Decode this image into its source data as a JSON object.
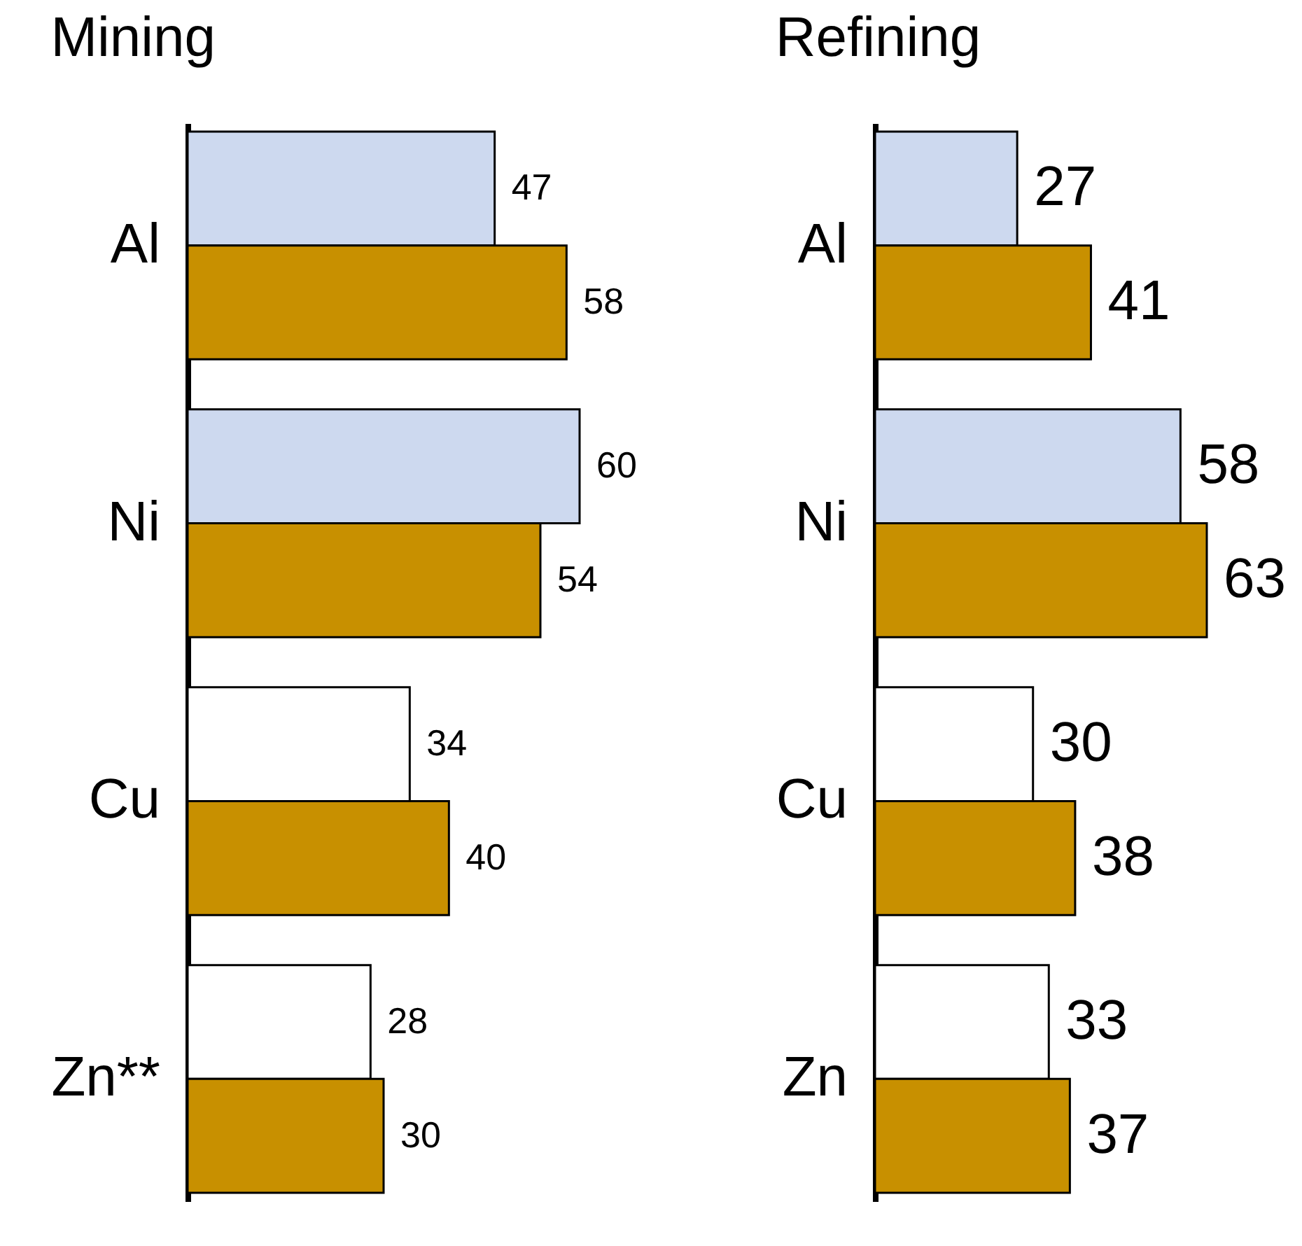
{
  "chart_data": [
    {
      "type": "bar",
      "orientation": "horizontal",
      "title": "Mining",
      "categories": [
        "Al",
        "Ni",
        "Cu",
        "Zn**"
      ],
      "data_labels": true,
      "series": [
        {
          "colors": [
            "#cdd9ef",
            "#cdd9ef",
            "#ffffff",
            "#ffffff"
          ],
          "values": [
            47,
            60,
            34,
            28
          ]
        },
        {
          "color": "#c89000",
          "values": [
            58,
            54,
            40,
            30
          ]
        }
      ]
    },
    {
      "type": "bar",
      "orientation": "horizontal",
      "title": "Refining",
      "categories": [
        "Al",
        "Ni",
        "Cu",
        "Zn"
      ],
      "data_labels": true,
      "series": [
        {
          "colors": [
            "#cdd9ef",
            "#cdd9ef",
            "#ffffff",
            "#ffffff"
          ],
          "values": [
            27,
            58,
            30,
            33
          ]
        },
        {
          "color": "#c89000",
          "values": [
            41,
            63,
            38,
            37
          ]
        }
      ]
    }
  ]
}
